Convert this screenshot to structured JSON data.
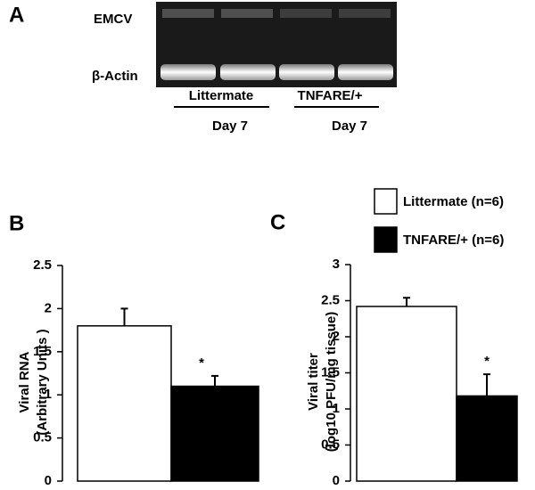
{
  "gel": {
    "panel": "A",
    "rows": [
      "EMCV",
      "β-Actin"
    ],
    "groups": [
      {
        "label": "Littermate",
        "sub": "Day 7"
      },
      {
        "label": "TNFARE/+",
        "sub": "Day 7"
      }
    ]
  },
  "chart_data": [
    {
      "type": "bar",
      "panel": "B",
      "ylabel": [
        "Viral RNA",
        "(Arbitrary Units )"
      ],
      "categories": [
        null
      ],
      "series": [
        {
          "color": "#ffffff",
          "values": [
            1.8
          ],
          "errors": [
            0.2
          ]
        },
        {
          "color": "#000000",
          "values": [
            1.1
          ],
          "errors": [
            0.12
          ]
        }
      ],
      "annotations": [
        {
          "text": "*",
          "series": 1
        }
      ],
      "ylim": [
        0,
        2.5
      ],
      "yticks": [
        0,
        0.5,
        1,
        1.5,
        2,
        2.5
      ]
    },
    {
      "type": "bar",
      "panel": "C",
      "ylabel": [
        "Viral titer",
        "(log10 PFU/mg tissue)"
      ],
      "categories": [
        null
      ],
      "series": [
        {
          "name": "Littermate (n=6)",
          "color": "#ffffff",
          "values": [
            2.42
          ],
          "errors": [
            0.12
          ]
        },
        {
          "name": "TNFARE/+ (n=6)",
          "color": "#000000",
          "values": [
            1.18
          ],
          "errors": [
            0.3
          ]
        }
      ],
      "annotations": [
        {
          "text": "*",
          "series": 1
        }
      ],
      "ylim": [
        0,
        3
      ],
      "yticks": [
        0,
        0.5,
        1,
        1.5,
        2,
        2.5,
        3
      ]
    }
  ]
}
